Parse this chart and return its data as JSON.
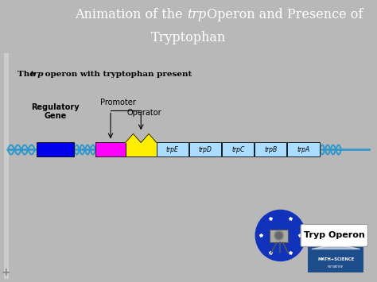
{
  "title_bg_color": "#1e4d8c",
  "title_text_color": "#ffffff",
  "body_bg_color": "#b8b8b8",
  "content_bg_color": "#e8e8e8",
  "reg_gene_color": "#0000ee",
  "promoter_color": "#ff00ff",
  "operator_color": "#ffee00",
  "gene_colors": [
    "#aaddff",
    "#aaddff",
    "#aaddff",
    "#aaddff",
    "#aaddff"
  ],
  "gene_labels": [
    "trpE",
    "trpD",
    "trpC",
    "trpB",
    "trpA"
  ],
  "dna_color": "#3399cc",
  "tryp_button_text": "Tryp Operon",
  "tryp_camera_bg": "#1133bb",
  "nmsi_bg": "#1e4d8c",
  "figw": 4.74,
  "figh": 3.55,
  "dpi": 100
}
